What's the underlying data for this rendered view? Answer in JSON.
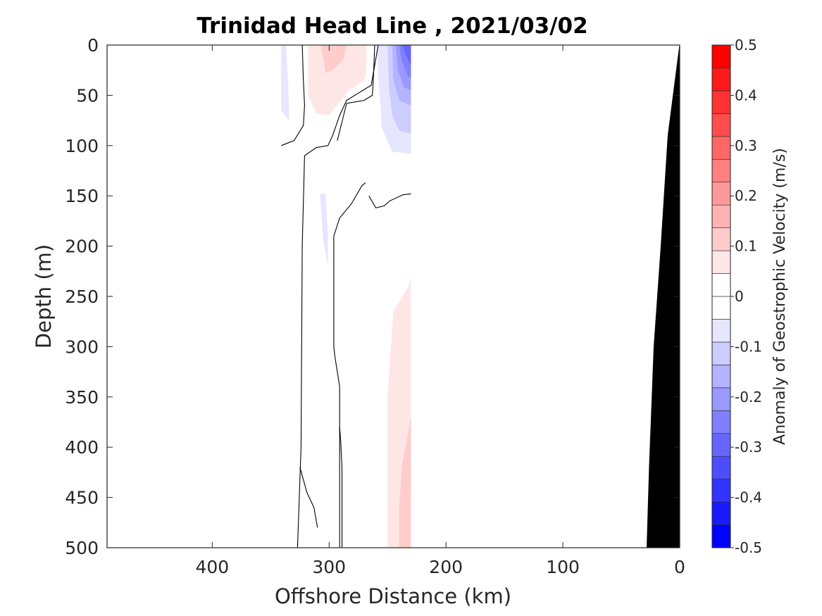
{
  "chart_data": {
    "type": "heatmap",
    "title": "Trinidad Head Line , 2021/03/02",
    "xlabel": "Offshore Distance (km)",
    "ylabel": "Depth (m)",
    "xlim": [
      490,
      0
    ],
    "ylim": [
      0,
      500
    ],
    "x_reversed": true,
    "y_reversed": true,
    "x_ticks": [
      400,
      300,
      200,
      100,
      0
    ],
    "y_ticks": [
      0,
      50,
      100,
      150,
      200,
      250,
      300,
      350,
      400,
      450,
      500
    ],
    "colorbar": {
      "label": "Anomaly of Geostrophic Velocity (m/s)",
      "range": [
        -0.5,
        0.5
      ],
      "step": 0.05,
      "tick_values": [
        -0.5,
        -0.4,
        -0.3,
        -0.2,
        -0.1,
        0,
        0.1,
        0.2,
        0.3,
        0.4,
        0.5
      ],
      "tick_labels": [
        "-0.5",
        "-0.4",
        "-0.3",
        "-0.2",
        "-0.1",
        "0",
        "0.1",
        "0.2",
        "0.3",
        "0.4",
        "0.5"
      ],
      "colors": [
        "#0000ff",
        "#1a1aff",
        "#3333ff",
        "#4d4dff",
        "#6666ff",
        "#8080ff",
        "#9999ff",
        "#b3b3ff",
        "#ccccff",
        "#e6e6ff",
        "#ffffff",
        "#ffffff",
        "#ffe6e6",
        "#ffcccc",
        "#ffb3b3",
        "#ff9999",
        "#ff8080",
        "#ff6666",
        "#ff4d4d",
        "#ff3333",
        "#ff1a1a",
        "#ff0000"
      ]
    },
    "filled_regions": [
      {
        "value": -0.05,
        "points": [
          [
            340,
            0
          ],
          [
            337,
            0
          ],
          [
            335,
            40
          ],
          [
            334,
            75
          ],
          [
            341,
            65
          ],
          [
            341,
            0
          ]
        ]
      },
      {
        "value": -0.05,
        "points": [
          [
            253,
            0
          ],
          [
            259,
            0
          ],
          [
            258,
            30
          ],
          [
            256,
            60
          ],
          [
            255,
            82
          ],
          [
            246,
            106
          ],
          [
            230,
            108
          ],
          [
            230,
            0
          ]
        ]
      },
      {
        "value": -0.1,
        "points": [
          [
            250,
            0
          ],
          [
            249,
            40
          ],
          [
            246,
            70
          ],
          [
            240,
            85
          ],
          [
            230,
            88
          ],
          [
            230,
            0
          ]
        ]
      },
      {
        "value": -0.15,
        "points": [
          [
            246,
            0
          ],
          [
            245,
            35
          ],
          [
            240,
            55
          ],
          [
            230,
            60
          ],
          [
            230,
            0
          ]
        ]
      },
      {
        "value": -0.2,
        "points": [
          [
            243,
            0
          ],
          [
            241,
            25
          ],
          [
            236,
            42
          ],
          [
            230,
            45
          ],
          [
            230,
            0
          ]
        ]
      },
      {
        "value": -0.25,
        "points": [
          [
            240,
            0
          ],
          [
            238,
            15
          ],
          [
            233,
            30
          ],
          [
            230,
            33
          ],
          [
            230,
            0
          ]
        ]
      },
      {
        "value": -0.3,
        "points": [
          [
            237,
            0
          ],
          [
            235,
            8
          ],
          [
            231,
            18
          ],
          [
            230,
            20
          ],
          [
            230,
            0
          ]
        ]
      },
      {
        "value": -0.05,
        "points": [
          [
            308,
            148
          ],
          [
            303,
            148
          ],
          [
            301,
            190
          ],
          [
            301,
            220
          ],
          [
            305,
            195
          ],
          [
            307,
            160
          ]
        ]
      },
      {
        "value": 0.05,
        "points": [
          [
            318,
            0
          ],
          [
            268,
            0
          ],
          [
            268,
            25
          ],
          [
            270,
            35
          ],
          [
            283,
            45
          ],
          [
            292,
            58
          ],
          [
            300,
            70
          ],
          [
            311,
            68
          ],
          [
            318,
            50
          ]
        ]
      },
      {
        "value": 0.1,
        "points": [
          [
            307,
            0
          ],
          [
            285,
            0
          ],
          [
            288,
            15
          ],
          [
            297,
            25
          ],
          [
            303,
            28
          ]
        ]
      },
      {
        "value": 0.05,
        "points": [
          [
            230,
            230
          ],
          [
            232,
            240
          ],
          [
            245,
            265
          ],
          [
            250,
            350
          ],
          [
            250,
            500
          ],
          [
            230,
            500
          ]
        ]
      },
      {
        "value": 0.1,
        "points": [
          [
            230,
            370
          ],
          [
            238,
            420
          ],
          [
            240,
            460
          ],
          [
            240,
            500
          ],
          [
            230,
            500
          ]
        ]
      }
    ],
    "zero_contours": [
      [
        [
          323,
          0
        ],
        [
          322,
          35
        ],
        [
          321,
          60
        ],
        [
          322,
          80
        ],
        [
          330,
          95
        ],
        [
          341,
          100
        ]
      ],
      [
        [
          258,
          0
        ],
        [
          261,
          20
        ],
        [
          264,
          40
        ],
        [
          285,
          55
        ],
        [
          291,
          70
        ],
        [
          297,
          90
        ],
        [
          301,
          100
        ],
        [
          311,
          102
        ],
        [
          321,
          110
        ],
        [
          323,
          200
        ],
        [
          324,
          400
        ],
        [
          327,
          500
        ]
      ],
      [
        [
          261,
          0
        ],
        [
          262,
          30
        ],
        [
          263,
          50
        ],
        [
          270,
          55
        ],
        [
          285,
          58
        ],
        [
          293,
          95
        ]
      ],
      [
        [
          269,
          137
        ],
        [
          272,
          140
        ],
        [
          281,
          158
        ],
        [
          291,
          172
        ],
        [
          296,
          190
        ],
        [
          296,
          300
        ],
        [
          295,
          310
        ],
        [
          293,
          325
        ],
        [
          291,
          340
        ],
        [
          291,
          500
        ]
      ],
      [
        [
          230,
          148
        ],
        [
          237,
          149
        ],
        [
          248,
          155
        ],
        [
          253,
          160
        ],
        [
          260,
          162
        ],
        [
          266,
          150
        ]
      ],
      [
        [
          291,
          380
        ],
        [
          290,
          395
        ],
        [
          289,
          420
        ],
        [
          289,
          500
        ]
      ],
      [
        [
          325,
          420
        ],
        [
          319,
          445
        ],
        [
          313,
          460
        ],
        [
          310,
          480
        ]
      ]
    ],
    "land_polygon": [
      [
        0,
        0
      ],
      [
        10,
        90
      ],
      [
        16,
        200
      ],
      [
        22,
        300
      ],
      [
        26,
        420
      ],
      [
        28,
        500
      ],
      [
        0,
        500
      ]
    ]
  }
}
